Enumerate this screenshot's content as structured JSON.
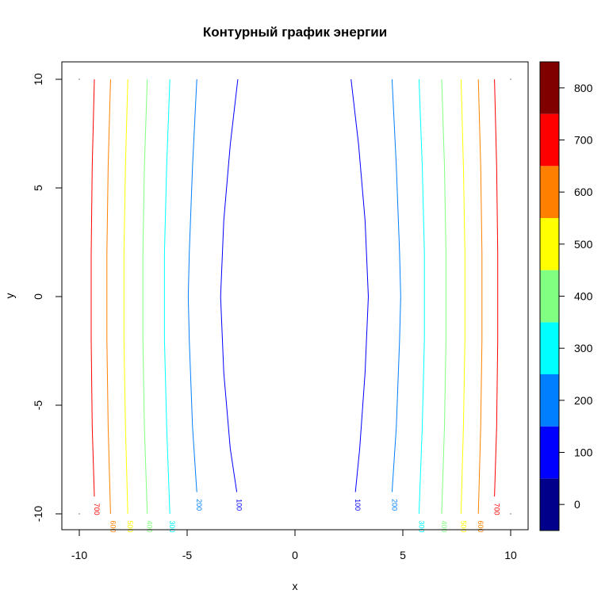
{
  "chart_data": {
    "type": "contour",
    "title": "Контурный график энергии",
    "xlabel": "x",
    "ylabel": "y",
    "xlim": [
      -10,
      10
    ],
    "ylim": [
      -10,
      10
    ],
    "x_ticks": [
      -10,
      -5,
      0,
      5,
      10
    ],
    "y_ticks": [
      -10,
      -5,
      0,
      5,
      10
    ],
    "contours": [
      {
        "level": 100,
        "label": "100",
        "color": "#0000FF",
        "left": [
          [
            -2.65,
            10
          ],
          [
            -3.0,
            7
          ],
          [
            -3.3,
            3.5
          ],
          [
            -3.45,
            0
          ],
          [
            -3.3,
            -3.5
          ],
          [
            -3.0,
            -7
          ],
          [
            -2.7,
            -9
          ]
        ],
        "right": [
          [
            2.6,
            10
          ],
          [
            2.95,
            7
          ],
          [
            3.25,
            3.5
          ],
          [
            3.4,
            0
          ],
          [
            3.25,
            -3.5
          ],
          [
            3.0,
            -7
          ],
          [
            2.8,
            -9
          ]
        ]
      },
      {
        "level": 200,
        "label": "200",
        "color": "#0080FF",
        "left": [
          [
            -4.55,
            10
          ],
          [
            -4.75,
            6
          ],
          [
            -4.9,
            2
          ],
          [
            -4.95,
            0
          ],
          [
            -4.9,
            -2
          ],
          [
            -4.75,
            -6
          ],
          [
            -4.55,
            -9
          ]
        ],
        "right": [
          [
            4.5,
            10
          ],
          [
            4.7,
            6
          ],
          [
            4.85,
            2
          ],
          [
            4.9,
            0
          ],
          [
            4.85,
            -2
          ],
          [
            4.7,
            -6
          ],
          [
            4.5,
            -9
          ]
        ]
      },
      {
        "level": 300,
        "label": "300",
        "color": "#00FFFF",
        "left": [
          [
            -5.8,
            10
          ],
          [
            -5.95,
            6
          ],
          [
            -6.05,
            2
          ],
          [
            -6.05,
            0
          ],
          [
            -6.05,
            -2
          ],
          [
            -5.95,
            -6
          ],
          [
            -5.8,
            -10
          ]
        ],
        "right": [
          [
            5.75,
            10
          ],
          [
            5.9,
            6
          ],
          [
            6.0,
            2
          ],
          [
            6.0,
            0
          ],
          [
            6.0,
            -2
          ],
          [
            5.9,
            -6
          ],
          [
            5.75,
            -10
          ]
        ]
      },
      {
        "level": 400,
        "label": "400",
        "color": "#80FF80",
        "left": [
          [
            -6.85,
            10
          ],
          [
            -6.98,
            6
          ],
          [
            -7.05,
            2
          ],
          [
            -7.05,
            0
          ],
          [
            -7.05,
            -2
          ],
          [
            -6.98,
            -6
          ],
          [
            -6.85,
            -10
          ]
        ],
        "right": [
          [
            6.8,
            10
          ],
          [
            6.93,
            6
          ],
          [
            7.0,
            2
          ],
          [
            7.0,
            0
          ],
          [
            7.0,
            -2
          ],
          [
            6.93,
            -6
          ],
          [
            6.8,
            -10
          ]
        ]
      },
      {
        "level": 500,
        "label": "500",
        "color": "#FFFF00",
        "left": [
          [
            -7.75,
            10
          ],
          [
            -7.86,
            6
          ],
          [
            -7.93,
            2
          ],
          [
            -7.93,
            0
          ],
          [
            -7.93,
            -2
          ],
          [
            -7.86,
            -6
          ],
          [
            -7.75,
            -10
          ]
        ],
        "right": [
          [
            7.7,
            10
          ],
          [
            7.81,
            6
          ],
          [
            7.88,
            2
          ],
          [
            7.88,
            0
          ],
          [
            7.88,
            -2
          ],
          [
            7.81,
            -6
          ],
          [
            7.7,
            -10
          ]
        ]
      },
      {
        "level": 600,
        "label": "600",
        "color": "#FF8000",
        "left": [
          [
            -8.55,
            10
          ],
          [
            -8.66,
            6
          ],
          [
            -8.72,
            2
          ],
          [
            -8.72,
            0
          ],
          [
            -8.72,
            -2
          ],
          [
            -8.66,
            -6
          ],
          [
            -8.55,
            -10
          ]
        ],
        "right": [
          [
            8.5,
            10
          ],
          [
            8.61,
            6
          ],
          [
            8.67,
            2
          ],
          [
            8.67,
            0
          ],
          [
            8.67,
            -2
          ],
          [
            8.61,
            -6
          ],
          [
            8.5,
            -10
          ]
        ]
      },
      {
        "level": 700,
        "label": "700",
        "color": "#FF0000",
        "left": [
          [
            -9.3,
            10
          ],
          [
            -9.4,
            6
          ],
          [
            -9.45,
            2
          ],
          [
            -9.45,
            0
          ],
          [
            -9.45,
            -2
          ],
          [
            -9.4,
            -6
          ],
          [
            -9.3,
            -9.2
          ]
        ],
        "right": [
          [
            9.25,
            10
          ],
          [
            9.35,
            6
          ],
          [
            9.4,
            2
          ],
          [
            9.4,
            0
          ],
          [
            9.4,
            -2
          ],
          [
            9.35,
            -6
          ],
          [
            9.25,
            -9.2
          ]
        ]
      }
    ],
    "colorbar": {
      "ticks": [
        0,
        100,
        200,
        300,
        400,
        500,
        600,
        700,
        800
      ],
      "range": [
        -50,
        850
      ],
      "bins": [
        {
          "from": -50,
          "to": 50,
          "color": "#00008B"
        },
        {
          "from": 50,
          "to": 150,
          "color": "#0000FF"
        },
        {
          "from": 150,
          "to": 250,
          "color": "#0080FF"
        },
        {
          "from": 250,
          "to": 350,
          "color": "#00FFFF"
        },
        {
          "from": 350,
          "to": 450,
          "color": "#80FF80"
        },
        {
          "from": 450,
          "to": 550,
          "color": "#FFFF00"
        },
        {
          "from": 550,
          "to": 650,
          "color": "#FF8000"
        },
        {
          "from": 650,
          "to": 750,
          "color": "#FF0000"
        },
        {
          "from": 750,
          "to": 850,
          "color": "#800000"
        }
      ]
    }
  }
}
